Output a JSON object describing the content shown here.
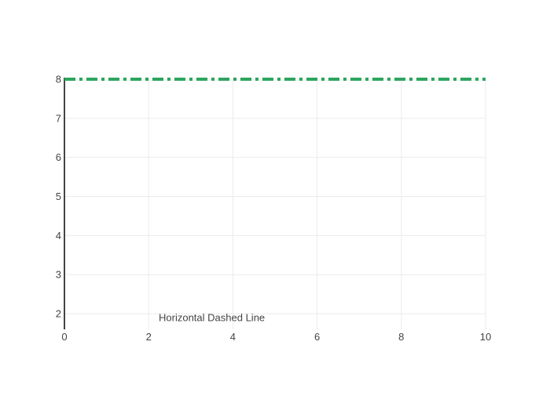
{
  "chart_data": {
    "type": "line",
    "title": "",
    "xlabel": "",
    "ylabel": "",
    "xlim": [
      0,
      10
    ],
    "ylim": [
      1.6,
      8
    ],
    "x_ticks": [
      0,
      2,
      4,
      6,
      8,
      10
    ],
    "y_ticks": [
      2,
      3,
      4,
      5,
      6,
      7,
      8
    ],
    "grid": true,
    "series": [
      {
        "x": [
          0,
          10
        ],
        "y": [
          8,
          8
        ],
        "color": "#2ca65e",
        "dash": "dashdot"
      }
    ],
    "annotations": [
      {
        "text": "Horizontal Dashed Line",
        "x": 3.5,
        "y": 1.9
      }
    ]
  }
}
